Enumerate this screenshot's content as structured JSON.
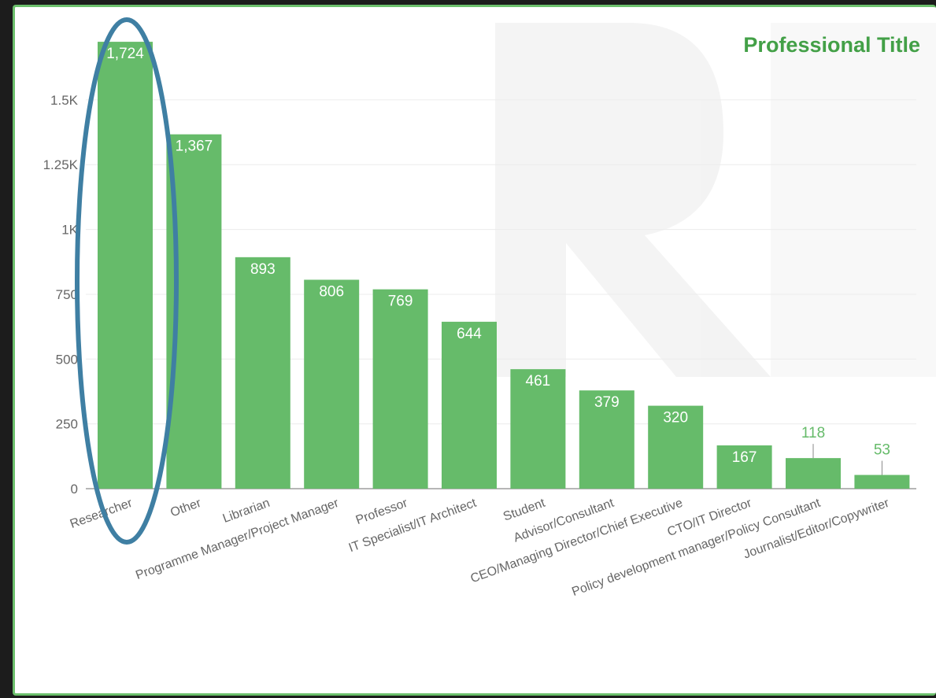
{
  "chart_data": {
    "type": "bar",
    "title": "Professional Title",
    "categories": [
      "Researcher",
      "Other",
      "Librarian",
      "Programme Manager/Project Manager",
      "Professor",
      "IT Specialist/IT Architect",
      "Student",
      "Advisor/Consultant",
      "CEO/Managing Director/Chief Executive",
      "CTO/IT Director",
      "Policy development manager/Policy Consultant",
      "Journalist/Editor/Copywriter"
    ],
    "values": [
      1724,
      1367,
      893,
      806,
      769,
      644,
      461,
      379,
      320,
      167,
      118,
      53
    ],
    "value_labels": [
      "1,724",
      "1,367",
      "893",
      "806",
      "769",
      "644",
      "461",
      "379",
      "320",
      "167",
      "118",
      "53"
    ],
    "ylim": [
      0,
      1700
    ],
    "yticks": [
      0,
      250,
      500,
      750,
      1000,
      1250,
      1500
    ],
    "ytick_labels": [
      "0",
      "250",
      "500",
      "750",
      "1K",
      "1.25K",
      "1.5K"
    ],
    "xlabel": "",
    "ylabel": "",
    "grid": true,
    "colors": {
      "bar": "#66bb6a",
      "title": "#43a047",
      "highlight_ellipse": "#3f7fa3",
      "grid": "#ececec",
      "tick_text": "#666666"
    },
    "annotation": "highlight ellipse around Researcher bar"
  }
}
